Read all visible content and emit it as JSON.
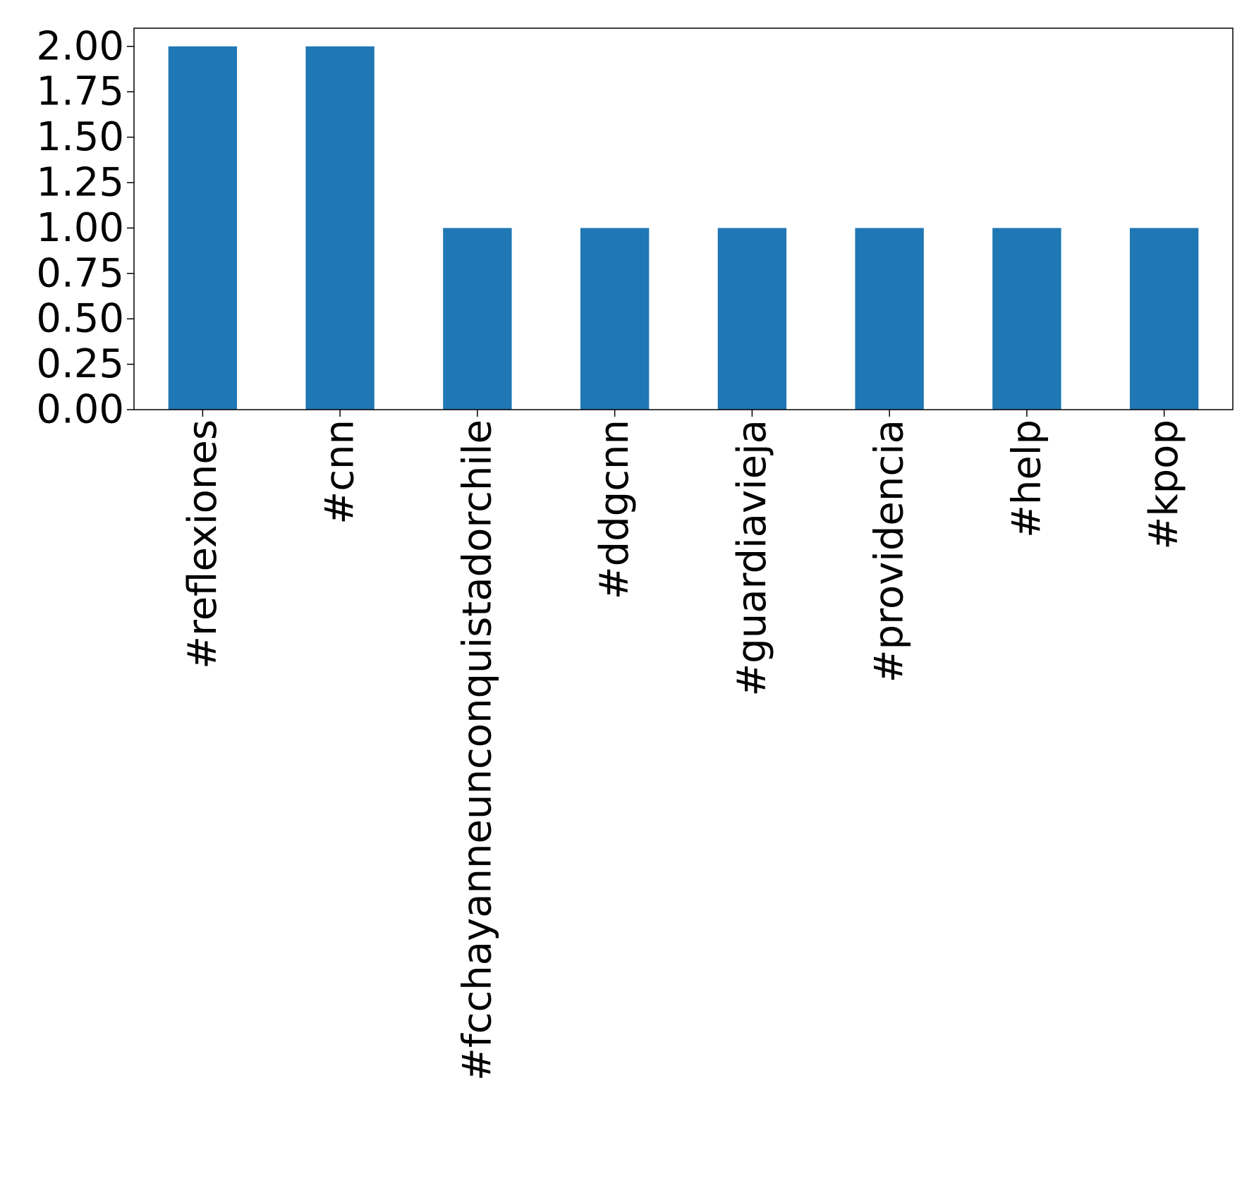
{
  "chart_data": {
    "type": "bar",
    "title": "",
    "xlabel": "",
    "ylabel": "",
    "categories": [
      "#reflexiones",
      "#cnn",
      "#fcchayanneunconquistadorchile",
      "#ddgcnn",
      "#guardiavieja",
      "#providencia",
      "#help",
      "#kpop"
    ],
    "values": [
      2,
      2,
      1,
      1,
      1,
      1,
      1,
      1
    ],
    "ylim": [
      0,
      2.1
    ],
    "yticks": [
      "0.00",
      "0.25",
      "0.50",
      "0.75",
      "1.00",
      "1.25",
      "1.50",
      "1.75",
      "2.00"
    ],
    "grid": false,
    "legend": "none",
    "bar_color": "#1f77b4",
    "category_label_rotation": "vertical"
  }
}
